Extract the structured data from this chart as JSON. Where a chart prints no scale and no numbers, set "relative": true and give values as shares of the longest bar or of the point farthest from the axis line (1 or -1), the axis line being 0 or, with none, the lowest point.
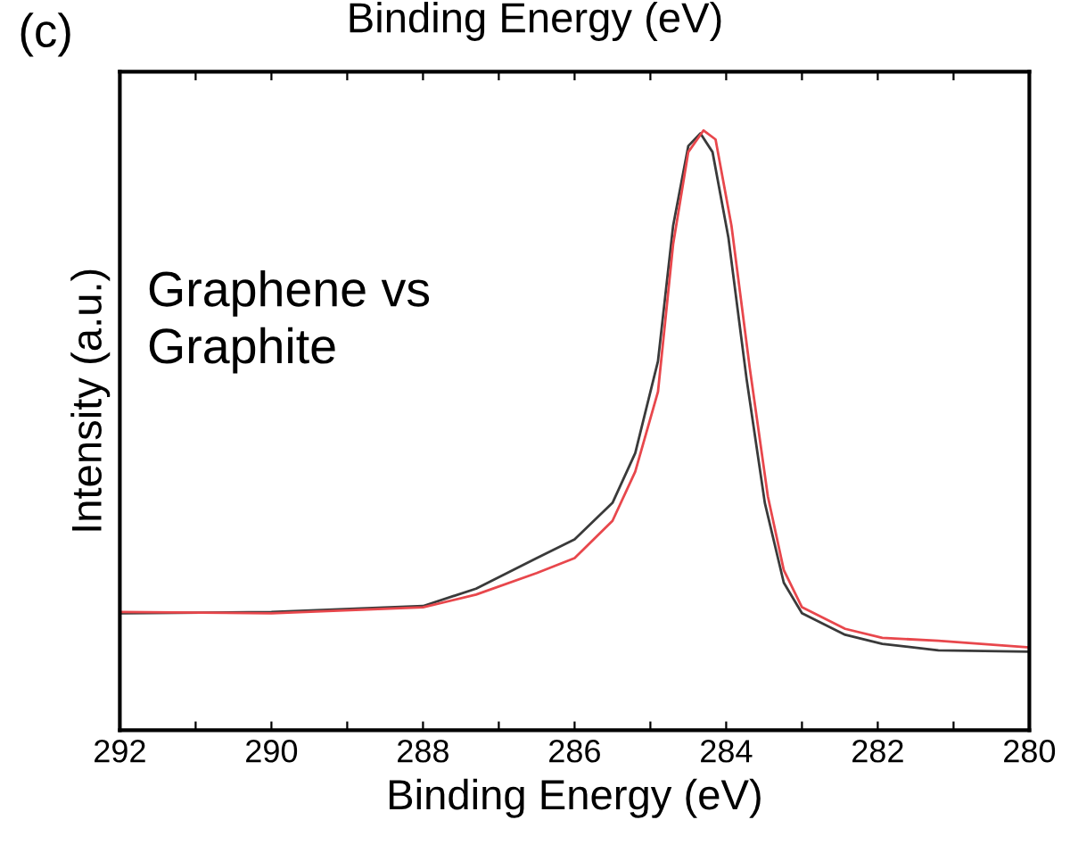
{
  "chart_data": {
    "type": "line",
    "relative": true,
    "xlabel": "Binding Energy (eV)",
    "ylabel": "Intensity (a.u.)",
    "annotations": [
      "(c)",
      "Graphene vs\nGraphite",
      "Binding Energy (eV)"
    ],
    "xlim": [
      292,
      280
    ],
    "xticks": [
      292,
      {
        "value": 291,
        "label": null
      },
      290,
      {
        "value": 289,
        "label": null
      },
      288,
      {
        "value": 287,
        "label": null
      },
      286,
      {
        "value": 285,
        "label": null
      },
      284,
      {
        "value": 283,
        "label": null
      },
      282,
      {
        "value": 281,
        "label": null
      },
      280
    ],
    "tick_labels": "x",
    "grid": false,
    "legend": false,
    "marker": "none",
    "line_style": "solid",
    "series": [
      {
        "color": "#3a3a3a",
        "x": [
          292,
          290,
          288,
          287.3,
          286.5,
          286,
          285.5,
          285.2,
          284.9,
          284.7,
          284.5,
          284.34,
          284.18,
          283.97,
          283.73,
          283.49,
          283.24,
          283.0,
          282.43,
          281.94,
          281.2,
          280
        ],
        "values": [
          0.195,
          0.197,
          0.207,
          0.236,
          0.287,
          0.318,
          0.379,
          0.462,
          0.615,
          0.841,
          0.974,
          0.995,
          0.964,
          0.821,
          0.585,
          0.379,
          0.246,
          0.195,
          0.159,
          0.144,
          0.133,
          0.131
        ]
      },
      {
        "color": "#e8474c",
        "x": [
          292,
          290,
          288,
          287.3,
          286.5,
          286,
          285.5,
          285.2,
          284.9,
          284.7,
          284.5,
          284.3,
          284.14,
          283.93,
          283.69,
          283.45,
          283.24,
          283.0,
          282.43,
          281.94,
          281.2,
          280
        ],
        "values": [
          0.197,
          0.195,
          0.205,
          0.226,
          0.262,
          0.287,
          0.349,
          0.431,
          0.564,
          0.81,
          0.964,
          1.0,
          0.985,
          0.841,
          0.605,
          0.39,
          0.267,
          0.205,
          0.169,
          0.154,
          0.149,
          0.138
        ]
      }
    ]
  }
}
